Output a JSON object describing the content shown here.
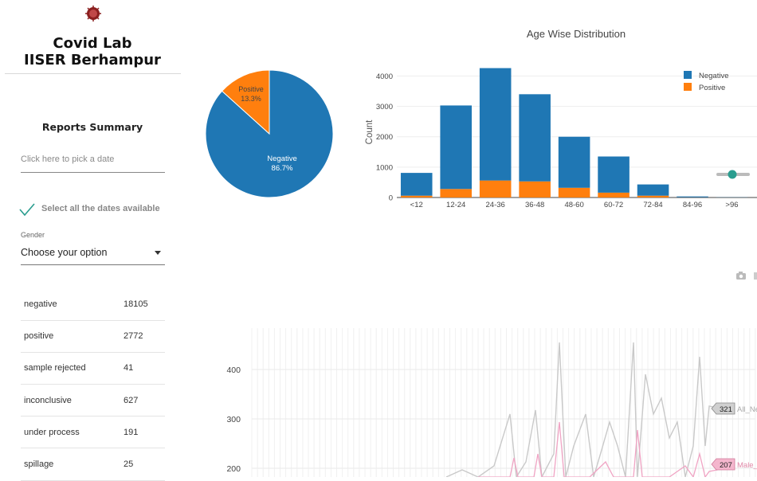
{
  "sidebar": {
    "title_line1": "Covid Lab",
    "title_line2": "IISER Berhampur",
    "summary_title": "Reports Summary",
    "date_placeholder": "Click here to pick a date",
    "select_all_label": "Select all the dates available",
    "gender_label": "Gender",
    "gender_value": "Choose your option",
    "stats": [
      {
        "label": "negative",
        "value": "18105"
      },
      {
        "label": "positive",
        "value": "2772"
      },
      {
        "label": "sample rejected",
        "value": "41"
      },
      {
        "label": "inconclusive",
        "value": "627"
      },
      {
        "label": "under process",
        "value": "191"
      },
      {
        "label": "spillage",
        "value": "25"
      }
    ]
  },
  "colors": {
    "negative": "#1f77b4",
    "positive": "#ff7f0e",
    "teal": "#2a9d8f"
  },
  "pie": {
    "slices": [
      {
        "label": "Negative",
        "pct": "86.7%",
        "value": 86.7
      },
      {
        "label": "Positive",
        "pct": "13.3%",
        "value": 13.3
      }
    ]
  },
  "chart_data": [
    {
      "type": "bar",
      "title": "Age Wise Distribution",
      "ylabel": "Count",
      "xlabel": "",
      "categories": [
        "<12",
        "12-24",
        "24-36",
        "36-48",
        "48-60",
        "60-72",
        "72-84",
        "84-96",
        ">96"
      ],
      "series": [
        {
          "name": "Negative",
          "values": [
            750,
            2750,
            3700,
            2870,
            1680,
            1190,
            370,
            30,
            5
          ]
        },
        {
          "name": "Positive",
          "values": [
            60,
            280,
            560,
            530,
            320,
            160,
            60,
            5,
            0
          ]
        }
      ],
      "ylim": [
        0,
        4300
      ],
      "yticks": [
        0,
        1000,
        2000,
        3000,
        4000
      ],
      "legend": "top-right",
      "stacked": true
    },
    {
      "type": "line",
      "yticks": [
        200,
        300,
        400
      ],
      "annotations": [
        {
          "value": "321",
          "series": "All_Ne"
        },
        {
          "value": "207",
          "series": "Male_"
        }
      ]
    }
  ]
}
